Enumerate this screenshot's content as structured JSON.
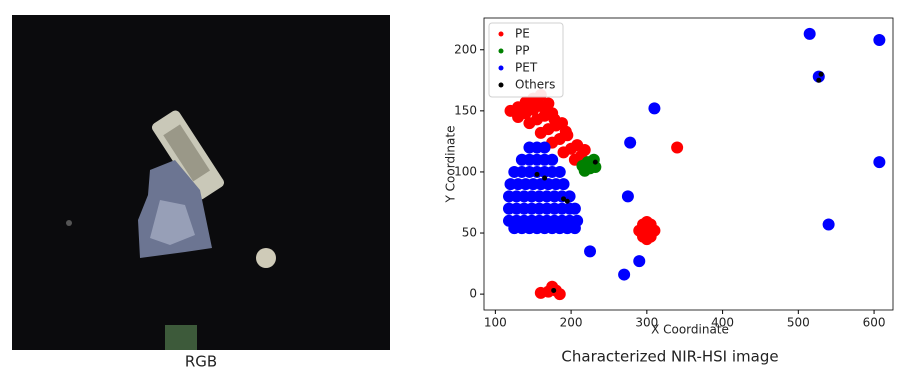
{
  "captions": {
    "left": "RGB",
    "right": "Characterized NIR-HSI image"
  },
  "chart_data": {
    "type": "scatter",
    "xlabel": "X Coordinate",
    "ylabel": "Y Coordinate",
    "xlim": [
      85,
      625
    ],
    "ylim": [
      -13,
      226
    ],
    "xticks": [
      100,
      200,
      300,
      400,
      500,
      600
    ],
    "yticks": [
      0,
      50,
      100,
      150,
      200
    ],
    "legend": "upper left",
    "series": [
      {
        "name": "PE",
        "color": "#ff0000",
        "x": [
          120,
          130,
          140,
          150,
          160,
          130,
          140,
          150,
          160,
          170,
          145,
          155,
          165,
          175,
          160,
          170,
          180,
          188,
          175,
          185,
          195,
          190,
          200,
          208,
          205,
          213,
          218,
          168,
          178,
          193,
          290,
          300,
          310,
          295,
          305,
          295,
          305,
          300,
          300,
          160,
          170,
          180,
          175,
          185,
          340
        ],
        "values": [
          150,
          153,
          157,
          160,
          163,
          145,
          148,
          151,
          154,
          156,
          140,
          143,
          146,
          148,
          132,
          135,
          138,
          140,
          124,
          127,
          130,
          116,
          119,
          122,
          110,
          113,
          118,
          150,
          143,
          133,
          52,
          52,
          52,
          57,
          57,
          47,
          47,
          59,
          45,
          1,
          2,
          3,
          6,
          0,
          120
        ]
      },
      {
        "name": "PP",
        "color": "#008000",
        "x": [
          215,
          222,
          230,
          225,
          232,
          218
        ],
        "values": [
          105,
          108,
          110,
          103,
          104,
          101
        ]
      },
      {
        "name": "PET",
        "color": "#0000ff",
        "x": [
          145,
          155,
          165,
          135,
          145,
          155,
          165,
          175,
          125,
          135,
          145,
          155,
          165,
          175,
          185,
          120,
          130,
          140,
          150,
          160,
          170,
          180,
          190,
          118,
          128,
          138,
          148,
          158,
          168,
          178,
          188,
          198,
          118,
          128,
          138,
          148,
          158,
          168,
          178,
          188,
          198,
          205,
          118,
          128,
          138,
          148,
          158,
          168,
          178,
          188,
          198,
          208,
          125,
          135,
          145,
          155,
          165,
          175,
          185,
          195,
          205,
          515,
          607,
          607,
          527,
          540,
          310,
          278,
          275,
          225,
          290,
          270
        ],
        "values": [
          120,
          120,
          120,
          110,
          110,
          110,
          110,
          110,
          100,
          100,
          100,
          100,
          100,
          100,
          100,
          90,
          90,
          90,
          90,
          90,
          90,
          90,
          90,
          80,
          80,
          80,
          80,
          80,
          80,
          80,
          80,
          80,
          70,
          70,
          70,
          70,
          70,
          70,
          70,
          70,
          70,
          70,
          60,
          60,
          60,
          60,
          60,
          60,
          60,
          60,
          60,
          60,
          54,
          54,
          54,
          54,
          54,
          54,
          54,
          54,
          54,
          213,
          208,
          108,
          178,
          57,
          152,
          124,
          80,
          35,
          27,
          16
        ]
      },
      {
        "name": "Others",
        "color": "#000000",
        "x": [
          527,
          530,
          165,
          155,
          190,
          195,
          177,
          232
        ],
        "values": [
          175,
          180,
          95,
          98,
          78,
          76,
          3,
          108
        ]
      }
    ]
  }
}
